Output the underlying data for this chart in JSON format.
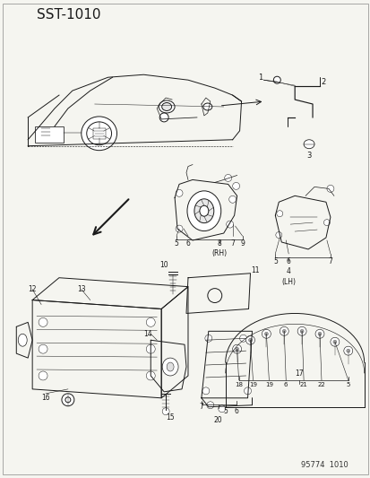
{
  "title": "SST–1010",
  "background_color": "#f5f5f0",
  "fig_width": 4.14,
  "fig_height": 5.33,
  "dpi": 100,
  "footer_text": "95774  1010",
  "line_color": "#1a1a1a",
  "lw": 0.7
}
